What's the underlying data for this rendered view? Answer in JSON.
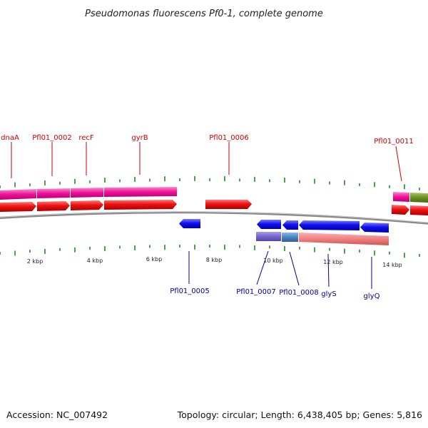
{
  "title": "Pseudomonas fluorescens Pf0-1, complete genome",
  "footer": {
    "accession": "Accession: NC_007492",
    "summary": "Topology: circular; Length: 6,438,405 bp; Genes: 5,816"
  },
  "scale_labels": [
    "2 kbp",
    "4 kbp",
    "6 kbp",
    "8 kbp",
    "10 kbp",
    "12 kbp",
    "14 kbp"
  ],
  "colors": {
    "forward_gene": "#ee1111",
    "reverse_gene": "#1111ee",
    "tick": "#228b22",
    "backbone": "#777777",
    "label_top": "#cc0000",
    "label_bottom": "#000099",
    "feature_magenta": "#ee1199",
    "feature_olive": "#6b8e23",
    "feature_purple": "#7766cc",
    "feature_steel": "#4a86c0",
    "feature_salmon": "#ee8080"
  },
  "top_labels": [
    "dnaA",
    "Pfl01_0002",
    "recF",
    "gyrB",
    "Pfl01_0006",
    "Pfl01_0011"
  ],
  "bottom_labels": [
    "Pfl01_0005",
    "Pfl01_0007",
    "Pfl01_0008",
    "glyS",
    "glyQ"
  ]
}
